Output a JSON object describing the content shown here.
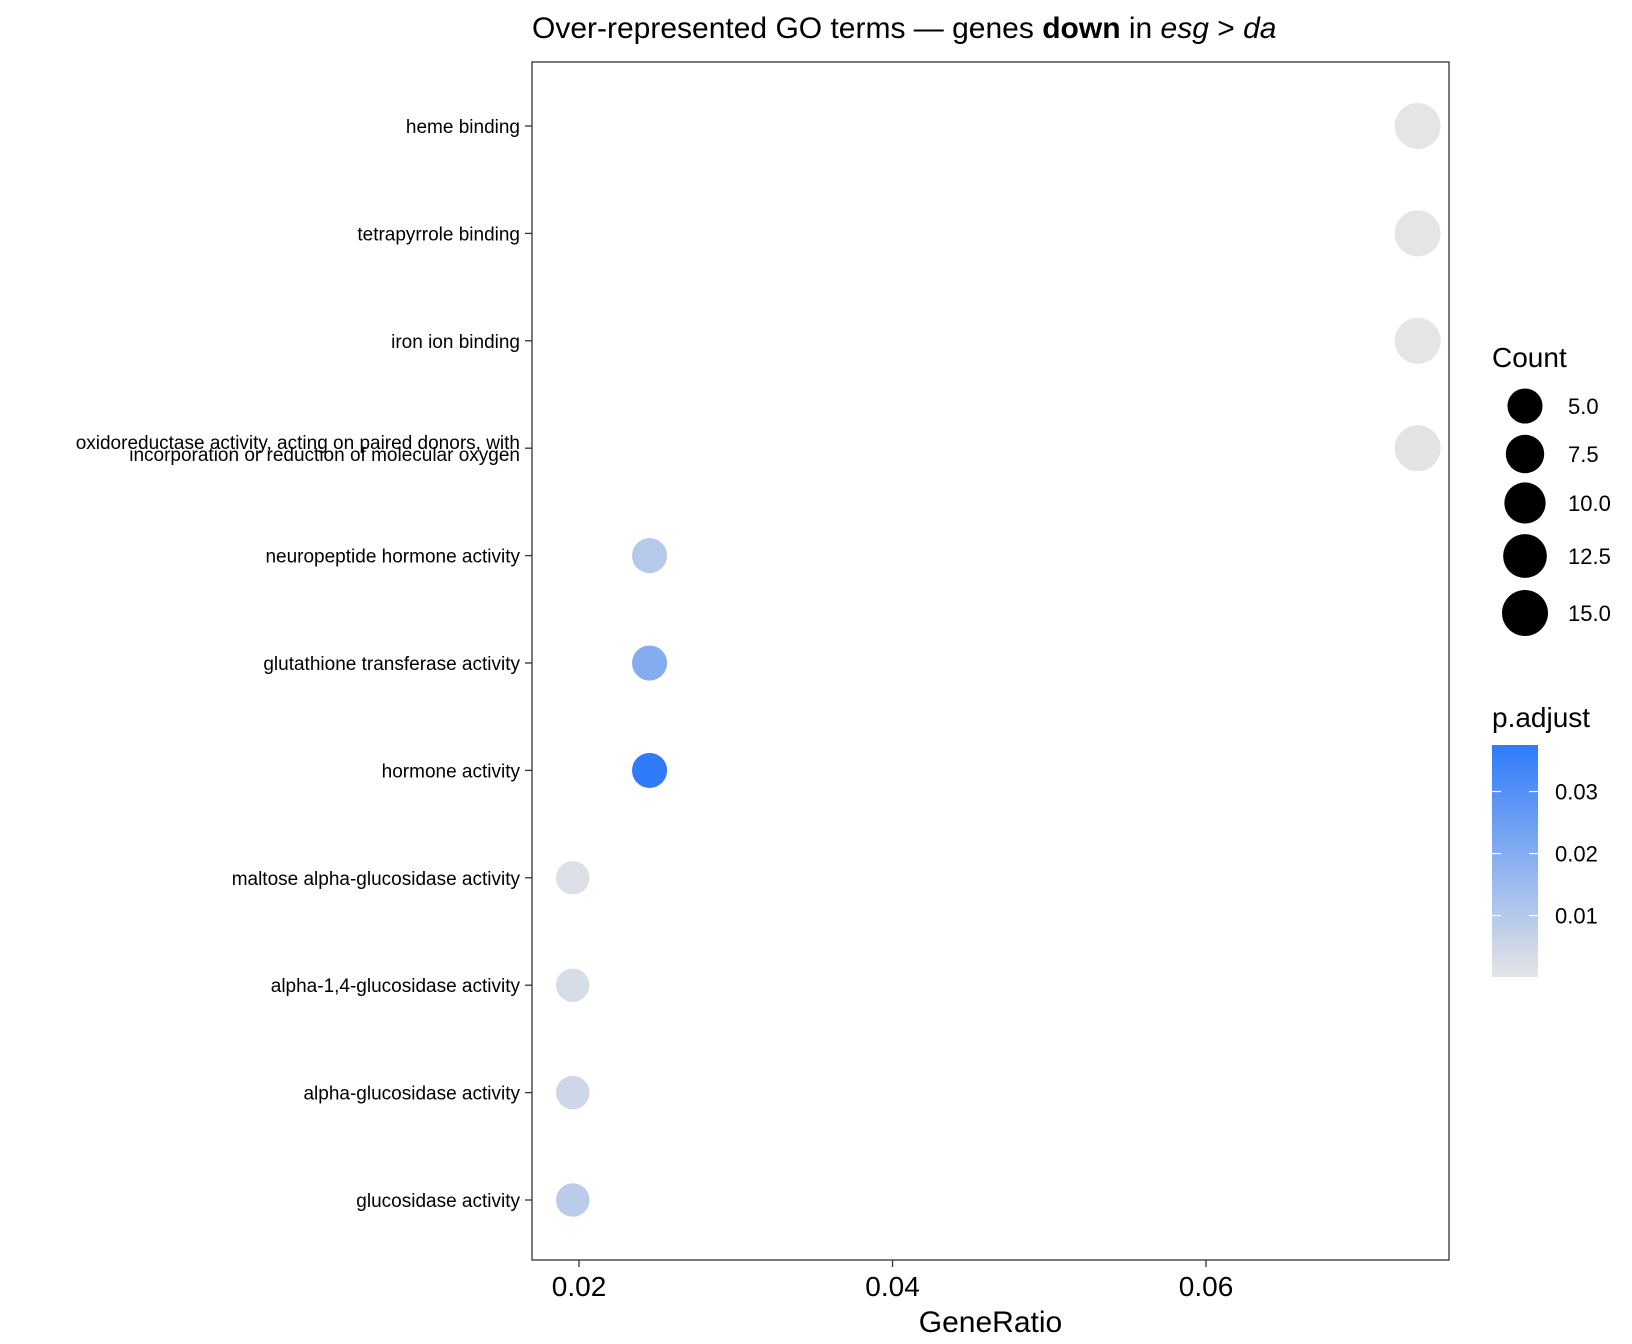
{
  "chart_data": {
    "type": "scatter",
    "title_parts": [
      {
        "text": "Over-represented GO terms — genes ",
        "style": "normal"
      },
      {
        "text": "down",
        "style": "bold"
      },
      {
        "text": " in ",
        "style": "normal"
      },
      {
        "text": "esg",
        "style": "italic"
      },
      {
        "text": " > ",
        "style": "normal"
      },
      {
        "text": "da",
        "style": "italic"
      }
    ],
    "xlabel": "GeneRatio",
    "ylabel": "",
    "xlim": [
      0.017,
      0.0755
    ],
    "x_ticks": [
      {
        "value": 0.02,
        "label": "0.02"
      },
      {
        "value": 0.04,
        "label": "0.04"
      },
      {
        "value": 0.06,
        "label": "0.06"
      }
    ],
    "grid": false,
    "legend_placement": "right",
    "points": [
      {
        "term": "heme binding",
        "term_lines": [
          "heme binding"
        ],
        "x": 0.0735,
        "count": 15,
        "p_adjust": 0.0001
      },
      {
        "term": "tetrapyrrole binding",
        "term_lines": [
          "tetrapyrrole binding"
        ],
        "x": 0.0735,
        "count": 15,
        "p_adjust": 0.0001
      },
      {
        "term": "iron ion binding",
        "term_lines": [
          "iron ion binding"
        ],
        "x": 0.0735,
        "count": 15,
        "p_adjust": 0.0001
      },
      {
        "term": "oxidoreductase activity, acting on paired donors, with incorporation or reduction of molecular oxygen",
        "term_lines": [
          "oxidoreductase activity, acting on paired donors, with",
          "incorporation or reduction of molecular oxygen"
        ],
        "x": 0.0735,
        "count": 15,
        "p_adjust": 0.0003
      },
      {
        "term": "neuropeptide hormone activity",
        "term_lines": [
          "neuropeptide hormone activity"
        ],
        "x": 0.0245,
        "count": 5,
        "p_adjust": 0.01
      },
      {
        "term": "glutathione transferase activity",
        "term_lines": [
          "glutathione transferase activity"
        ],
        "x": 0.0245,
        "count": 5,
        "p_adjust": 0.02
      },
      {
        "term": "hormone activity",
        "term_lines": [
          "hormone activity"
        ],
        "x": 0.0245,
        "count": 5,
        "p_adjust": 0.0375
      },
      {
        "term": "maltose alpha-glucosidase activity",
        "term_lines": [
          "maltose alpha-glucosidase activity"
        ],
        "x": 0.0196,
        "count": 4,
        "p_adjust": 0.002
      },
      {
        "term": "alpha-1,4-glucosidase activity",
        "term_lines": [
          "alpha-1,4-glucosidase activity"
        ],
        "x": 0.0196,
        "count": 4,
        "p_adjust": 0.003
      },
      {
        "term": "alpha-glucosidase activity",
        "term_lines": [
          "alpha-glucosidase activity"
        ],
        "x": 0.0196,
        "count": 4,
        "p_adjust": 0.005
      },
      {
        "term": "glucosidase activity",
        "term_lines": [
          "glucosidase activity"
        ],
        "x": 0.0196,
        "count": 4,
        "p_adjust": 0.009
      }
    ],
    "size_legend": {
      "title": "Count",
      "entries": [
        {
          "value": 5.0,
          "label": "5.0"
        },
        {
          "value": 7.5,
          "label": "7.5"
        },
        {
          "value": 10.0,
          "label": "10.0"
        },
        {
          "value": 12.5,
          "label": "12.5"
        },
        {
          "value": 15.0,
          "label": "15.0"
        }
      ]
    },
    "color_legend": {
      "title": "p.adjust",
      "range": [
        0.0001,
        0.0375
      ],
      "low_color": "#E5E5E5",
      "high_color": "#2F7BFA",
      "ticks": [
        {
          "value": 0.01,
          "label": "0.01"
        },
        {
          "value": 0.02,
          "label": "0.02"
        },
        {
          "value": 0.03,
          "label": "0.03"
        }
      ]
    }
  }
}
